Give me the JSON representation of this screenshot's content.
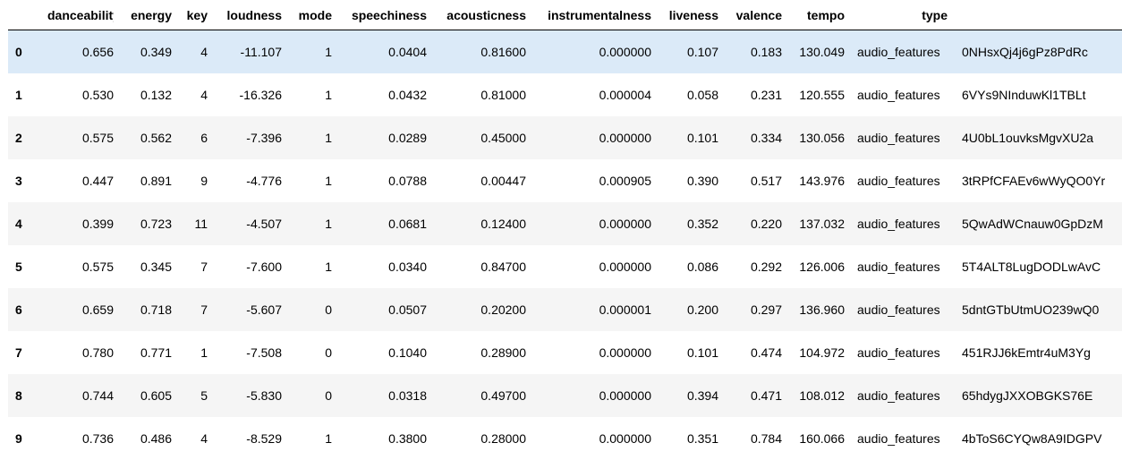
{
  "columns": [
    "",
    "danceability",
    "energy",
    "key",
    "loudness",
    "mode",
    "speechiness",
    "acousticness",
    "instrumentalness",
    "liveness",
    "valence",
    "tempo",
    "type",
    ""
  ],
  "rows": [
    {
      "idx": "0",
      "cells": [
        "0.656",
        "0.349",
        "4",
        "-11.107",
        "1",
        "0.0404",
        "0.81600",
        "0.000000",
        "0.107",
        "0.183",
        "130.049",
        "audio_features",
        "0NHsxQj4j6gPz8PdRc"
      ]
    },
    {
      "idx": "1",
      "cells": [
        "0.530",
        "0.132",
        "4",
        "-16.326",
        "1",
        "0.0432",
        "0.81000",
        "0.000004",
        "0.058",
        "0.231",
        "120.555",
        "audio_features",
        "6VYs9NInduwKl1TBLt"
      ]
    },
    {
      "idx": "2",
      "cells": [
        "0.575",
        "0.562",
        "6",
        "-7.396",
        "1",
        "0.0289",
        "0.45000",
        "0.000000",
        "0.101",
        "0.334",
        "130.056",
        "audio_features",
        "4U0bL1ouvksMgvXU2a"
      ]
    },
    {
      "idx": "3",
      "cells": [
        "0.447",
        "0.891",
        "9",
        "-4.776",
        "1",
        "0.0788",
        "0.00447",
        "0.000905",
        "0.390",
        "0.517",
        "143.976",
        "audio_features",
        "3tRPfCFAEv6wWyQO0Yr"
      ]
    },
    {
      "idx": "4",
      "cells": [
        "0.399",
        "0.723",
        "11",
        "-4.507",
        "1",
        "0.0681",
        "0.12400",
        "0.000000",
        "0.352",
        "0.220",
        "137.032",
        "audio_features",
        "5QwAdWCnauw0GpDzM"
      ]
    },
    {
      "idx": "5",
      "cells": [
        "0.575",
        "0.345",
        "7",
        "-7.600",
        "1",
        "0.0340",
        "0.84700",
        "0.000000",
        "0.086",
        "0.292",
        "126.006",
        "audio_features",
        "5T4ALT8LugDODLwAvC"
      ]
    },
    {
      "idx": "6",
      "cells": [
        "0.659",
        "0.718",
        "7",
        "-5.607",
        "0",
        "0.0507",
        "0.20200",
        "0.000001",
        "0.200",
        "0.297",
        "136.960",
        "audio_features",
        "5dntGTbUtmUO239wQ0"
      ]
    },
    {
      "idx": "7",
      "cells": [
        "0.780",
        "0.771",
        "1",
        "-7.508",
        "0",
        "0.1040",
        "0.28900",
        "0.000000",
        "0.101",
        "0.474",
        "104.972",
        "audio_features",
        "451RJJ6kEmtr4uM3Yg"
      ]
    },
    {
      "idx": "8",
      "cells": [
        "0.744",
        "0.605",
        "5",
        "-5.830",
        "0",
        "0.0318",
        "0.49700",
        "0.000000",
        "0.394",
        "0.471",
        "108.012",
        "audio_features",
        "65hdygJXXOBGKS76E"
      ]
    },
    {
      "idx": "9",
      "cells": [
        "0.736",
        "0.486",
        "4",
        "-8.529",
        "1",
        "0.3800",
        "0.28000",
        "0.000000",
        "0.351",
        "0.784",
        "160.066",
        "audio_features",
        "4bToS6CYQw8A9IDGPV"
      ]
    }
  ],
  "hovered_row": 0,
  "colors": {
    "hover": "#dbeaf8",
    "stripe": "#f5f5f5"
  }
}
